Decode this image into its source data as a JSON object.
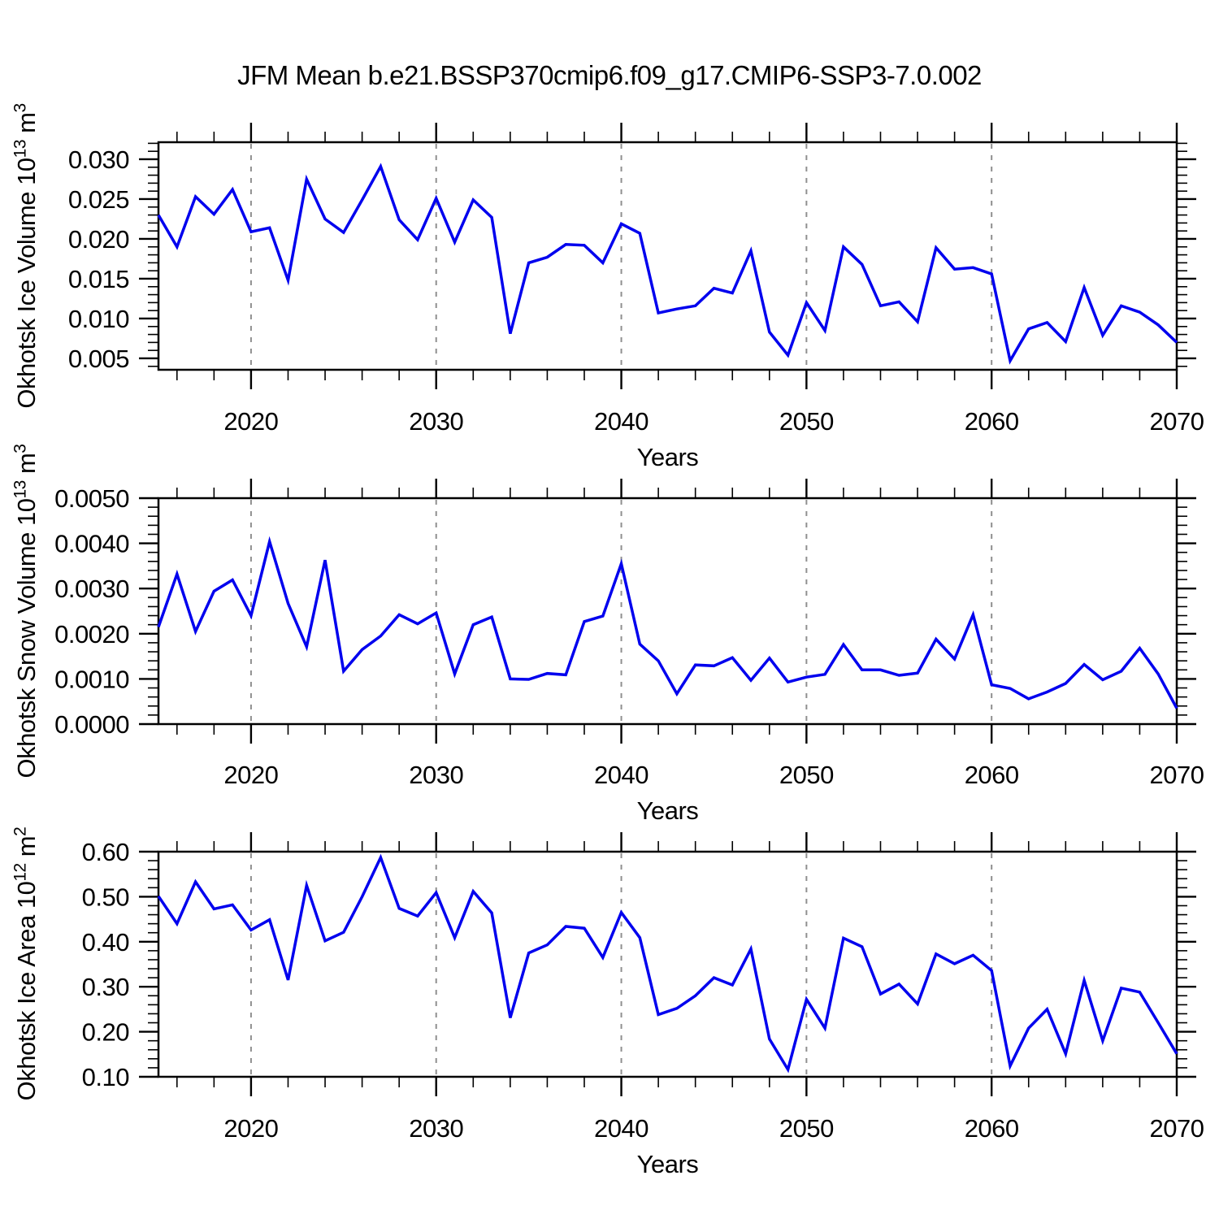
{
  "title": "JFM Mean b.e21.BSSP370cmip6.f09_g17.CMIP6-SSP3-7.0.002",
  "colors": {
    "line": "#0000ee",
    "gridline": "#8f8f8f",
    "axis": "#000000",
    "background": "#ffffff"
  },
  "x_axis": {
    "label": "Years",
    "min": 2015,
    "max": 2070,
    "major_ticks": [
      2020,
      2030,
      2040,
      2050,
      2060,
      2070
    ],
    "major_tick_labels": [
      "2020",
      "2030",
      "2040",
      "2050",
      "2060",
      "2070"
    ],
    "minor_step": 2,
    "dashed_gridlines": [
      2020,
      2030,
      2040,
      2050,
      2060
    ]
  },
  "years": [
    2015,
    2016,
    2017,
    2018,
    2019,
    2020,
    2021,
    2022,
    2023,
    2024,
    2025,
    2026,
    2027,
    2028,
    2029,
    2030,
    2031,
    2032,
    2033,
    2034,
    2035,
    2036,
    2037,
    2038,
    2039,
    2040,
    2041,
    2042,
    2043,
    2044,
    2045,
    2046,
    2047,
    2048,
    2049,
    2050,
    2051,
    2052,
    2053,
    2054,
    2055,
    2056,
    2057,
    2058,
    2059,
    2060,
    2061,
    2062,
    2063,
    2064,
    2065,
    2066,
    2067,
    2068,
    2069,
    2070
  ],
  "chart_data": [
    {
      "type": "line",
      "name": "okhotsk-ice-volume",
      "ylabel_parts": [
        {
          "t": "Okhotsk Ice Volume 10"
        },
        {
          "t": "13",
          "sup": true
        },
        {
          "t": " m"
        },
        {
          "t": "3",
          "sup": true
        }
      ],
      "ylim": [
        0.00357,
        0.03214
      ],
      "ymajor_ticks": [
        0.005,
        0.01,
        0.015,
        0.02,
        0.025,
        0.03
      ],
      "ymajor_labels": [
        "0.005",
        "0.010",
        "0.015",
        "0.020",
        "0.025",
        "0.030"
      ],
      "yminor_step": 0.001,
      "values": [
        0.023,
        0.019,
        0.0253,
        0.0231,
        0.0262,
        0.0209,
        0.0214,
        0.0148,
        0.0275,
        0.0225,
        0.0208,
        0.0249,
        0.0291,
        0.0224,
        0.0199,
        0.0251,
        0.0196,
        0.0249,
        0.0227,
        0.0081,
        0.017,
        0.0177,
        0.0193,
        0.0192,
        0.017,
        0.0219,
        0.0207,
        0.0107,
        0.0112,
        0.0116,
        0.0138,
        0.0132,
        0.0185,
        0.0083,
        0.0054,
        0.012,
        0.0085,
        0.019,
        0.0168,
        0.0116,
        0.0121,
        0.0096,
        0.0189,
        0.0162,
        0.0164,
        0.0156,
        0.0047,
        0.0087,
        0.0095,
        0.0071,
        0.0139,
        0.0079,
        0.0116,
        0.0108,
        0.0092,
        0.007
      ]
    },
    {
      "type": "line",
      "name": "okhotsk-snow-volume",
      "ylabel_parts": [
        {
          "t": "Okhotsk Snow Volume 10"
        },
        {
          "t": "13",
          "sup": true
        },
        {
          "t": " m"
        },
        {
          "t": "3",
          "sup": true
        }
      ],
      "ylim": [
        0.0,
        0.005
      ],
      "ymajor_ticks": [
        0.0,
        0.001,
        0.002,
        0.003,
        0.004,
        0.005
      ],
      "ymajor_labels": [
        "0.0000",
        "0.0010",
        "0.0020",
        "0.0030",
        "0.0040",
        "0.0050"
      ],
      "yminor_step": 0.0002,
      "values": [
        0.00215,
        0.00332,
        0.00205,
        0.00294,
        0.00319,
        0.0024,
        0.00404,
        0.00267,
        0.00171,
        0.00363,
        0.00117,
        0.00165,
        0.00195,
        0.00242,
        0.00222,
        0.00246,
        0.00111,
        0.0022,
        0.00237,
        0.001,
        0.00099,
        0.00112,
        0.00109,
        0.00227,
        0.00239,
        0.00355,
        0.00177,
        0.0014,
        0.00067,
        0.00131,
        0.00129,
        0.00147,
        0.00097,
        0.00146,
        0.00093,
        0.00104,
        0.0011,
        0.00176,
        0.0012,
        0.0012,
        0.00108,
        0.00113,
        0.00188,
        0.00144,
        0.00242,
        0.00087,
        0.00079,
        0.00056,
        0.00071,
        0.0009,
        0.00132,
        0.00098,
        0.00117,
        0.00168,
        0.00111,
        0.00035
      ]
    },
    {
      "type": "line",
      "name": "okhotsk-ice-area",
      "ylabel_parts": [
        {
          "t": "Okhotsk Ice Area 10"
        },
        {
          "t": "12",
          "sup": true
        },
        {
          "t": " m"
        },
        {
          "t": "2",
          "sup": true
        }
      ],
      "ylim": [
        0.1,
        0.6
      ],
      "ymajor_ticks": [
        0.1,
        0.2,
        0.3,
        0.4,
        0.5,
        0.6
      ],
      "ymajor_labels": [
        "0.10",
        "0.20",
        "0.30",
        "0.40",
        "0.50",
        "0.60"
      ],
      "yminor_step": 0.02,
      "values": [
        0.501,
        0.44,
        0.533,
        0.473,
        0.482,
        0.426,
        0.449,
        0.315,
        0.525,
        0.402,
        0.421,
        0.5,
        0.587,
        0.474,
        0.457,
        0.509,
        0.409,
        0.512,
        0.464,
        0.231,
        0.375,
        0.393,
        0.434,
        0.43,
        0.365,
        0.465,
        0.409,
        0.238,
        0.252,
        0.28,
        0.32,
        0.304,
        0.384,
        0.184,
        0.116,
        0.272,
        0.208,
        0.408,
        0.389,
        0.284,
        0.306,
        0.262,
        0.373,
        0.351,
        0.37,
        0.336,
        0.124,
        0.208,
        0.25,
        0.151,
        0.314,
        0.18,
        0.297,
        0.288,
        0.22,
        0.151
      ]
    }
  ]
}
